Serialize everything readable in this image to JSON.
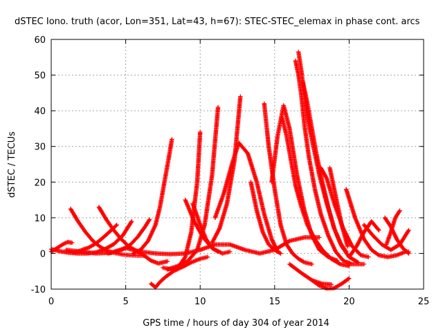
{
  "chart_data": {
    "type": "scatter",
    "title": "dSTEC Iono. truth (acor, Lon=351, Lat=43, h=67): STEC-STEC_elemax in phase cont. arcs",
    "xlabel": "GPS time / hours of day 304 of year 2014",
    "ylabel": "dSTEC  / TECUs",
    "xlim": [
      0,
      25
    ],
    "ylim": [
      -10,
      60
    ],
    "xticks": [
      0,
      5,
      10,
      15,
      20,
      25
    ],
    "yticks": [
      -10,
      0,
      10,
      20,
      30,
      40,
      50,
      60
    ],
    "grid": true,
    "legend": "none",
    "marker": "plus",
    "color": "#ff0000",
    "series": [
      {
        "x": [
          0.0,
          0.2,
          0.5,
          0.8,
          1.1,
          1.4
        ],
        "y": [
          0.5,
          1.0,
          1.8,
          2.6,
          3.2,
          3.0
        ]
      },
      {
        "x": [
          0.0,
          0.6,
          1.2,
          1.8,
          2.4,
          3.0,
          3.6,
          4.2,
          4.8,
          5.4
        ],
        "y": [
          1.2,
          0.6,
          0.2,
          0.0,
          0.0,
          0.3,
          1.2,
          2.6,
          5.0,
          9.0
        ]
      },
      {
        "x": [
          1.3,
          1.8,
          2.3,
          2.8,
          3.3,
          3.8,
          4.3,
          4.8,
          5.3,
          5.8,
          6.3
        ],
        "y": [
          12.5,
          9.0,
          6.0,
          3.5,
          1.8,
          0.7,
          0.1,
          -0.3,
          -0.5,
          -0.6,
          -0.6
        ]
      },
      {
        "x": [
          1.6,
          2.0,
          2.5,
          3.0,
          3.5,
          4.0,
          4.4
        ],
        "y": [
          0.3,
          0.9,
          1.6,
          2.8,
          4.5,
          6.4,
          8.0
        ]
      },
      {
        "x": [
          3.2,
          3.7,
          4.2,
          4.7,
          5.2,
          5.7,
          6.2,
          6.7,
          7.2,
          7.8
        ],
        "y": [
          13.0,
          9.5,
          6.5,
          4.0,
          2.0,
          0.8,
          -0.5,
          -2.0,
          -2.8,
          -2.2
        ]
      },
      {
        "x": [
          3.8,
          4.3,
          4.8,
          5.3,
          5.8,
          6.3,
          6.6
        ],
        "y": [
          0.0,
          0.4,
          1.2,
          2.4,
          4.6,
          7.5,
          9.5
        ]
      },
      {
        "x": [
          5.5,
          6.0,
          6.5,
          7.0,
          7.3,
          7.6,
          7.9,
          8.1
        ],
        "y": [
          0.0,
          1.0,
          3.5,
          8.0,
          13.0,
          20.0,
          27.0,
          32.0
        ]
      },
      {
        "x": [
          6.7,
          7.0,
          7.3,
          7.7,
          8.2,
          8.8,
          9.4,
          10.0,
          10.5
        ],
        "y": [
          -8.5,
          -9.5,
          -8.0,
          -6.5,
          -5.0,
          -3.8,
          -2.5,
          -1.5,
          -1.0
        ]
      },
      {
        "x": [
          7.5,
          8.0,
          8.5,
          9.0,
          9.4,
          9.8,
          10.0
        ],
        "y": [
          -4.0,
          -4.4,
          -4.0,
          -1.0,
          6.0,
          20.0,
          34.0
        ]
      },
      {
        "x": [
          7.8,
          8.5,
          9.2,
          9.8,
          10.3,
          10.8,
          11.2
        ],
        "y": [
          -4.5,
          -3.5,
          -2.0,
          1.0,
          8.0,
          22.0,
          41.0
        ]
      },
      {
        "x": [
          9.0,
          9.6,
          10.2,
          10.8,
          11.5,
          12.0
        ],
        "y": [
          15.0,
          9.0,
          4.5,
          1.5,
          0.0,
          0.5
        ]
      },
      {
        "x": [
          9.5,
          10.0,
          10.4,
          10.8,
          11.2
        ],
        "y": [
          14.0,
          8.0,
          4.0,
          1.5,
          0.5
        ]
      },
      {
        "x": [
          10.8,
          11.3,
          11.8,
          12.3,
          12.7
        ],
        "y": [
          3.0,
          7.0,
          14.0,
          26.0,
          44.0
        ]
      },
      {
        "x": [
          11.0,
          11.6,
          12.2,
          12.6,
          13.2,
          13.8,
          14.3,
          14.8,
          15.2
        ],
        "y": [
          10.0,
          17.0,
          26.0,
          31.0,
          28.0,
          20.0,
          11.0,
          4.0,
          0.5
        ]
      },
      {
        "x": [
          13.4,
          13.8,
          14.2,
          14.6,
          15.0,
          15.4
        ],
        "y": [
          20.0,
          12.0,
          6.0,
          2.5,
          1.0,
          0.0
        ]
      },
      {
        "x": [
          14.3,
          14.6,
          15.0,
          15.4,
          15.8,
          16.2,
          16.6,
          17.0,
          17.5
        ],
        "y": [
          42.0,
          30.0,
          18.0,
          8.0,
          2.5,
          0.0,
          -1.5,
          -2.5,
          -3.0
        ]
      },
      {
        "x": [
          14.8,
          15.2,
          15.6,
          16.0,
          16.5,
          17.0,
          17.5,
          18.0,
          18.6,
          19.2
        ],
        "y": [
          20.0,
          33.0,
          41.5,
          35.0,
          22.0,
          12.0,
          5.0,
          1.0,
          -1.0,
          -2.0
        ]
      },
      {
        "x": [
          15.5,
          15.8,
          16.1,
          16.4,
          16.8,
          17.2,
          17.7,
          18.2,
          18.8,
          19.4,
          20.0
        ],
        "y": [
          38.0,
          33.0,
          26.0,
          19.0,
          13.0,
          8.0,
          4.0,
          1.0,
          -1.5,
          -3.0,
          -3.5
        ]
      },
      {
        "x": [
          16.4,
          16.6,
          16.8,
          17.0,
          17.3,
          17.7,
          18.1,
          18.6,
          19.1,
          19.6,
          20.2,
          21.0
        ],
        "y": [
          54.0,
          50.0,
          44.0,
          36.0,
          27.0,
          18.0,
          11.0,
          5.0,
          0.5,
          -2.0,
          -3.0,
          -3.0
        ]
      },
      {
        "x": [
          16.6,
          16.8,
          17.0,
          17.2,
          17.6,
          18.0,
          18.5,
          19.0,
          19.5,
          20.0,
          20.6
        ],
        "y": [
          56.5,
          51.0,
          44.0,
          38.0,
          30.0,
          22.0,
          14.0,
          7.0,
          2.0,
          -1.0,
          -2.5
        ]
      },
      {
        "x": [
          16.9,
          17.2,
          17.5,
          17.8,
          18.2,
          18.6,
          19.0,
          19.4,
          19.8
        ],
        "y": [
          48.0,
          42.0,
          35.0,
          28.0,
          20.0,
          13.0,
          7.0,
          3.0,
          0.5
        ]
      },
      {
        "x": [
          18.1,
          18.5,
          19.0,
          19.6,
          20.2,
          20.8,
          21.3
        ],
        "y": [
          24.0,
          21.0,
          14.0,
          7.0,
          2.0,
          -0.5,
          -1.0
        ]
      },
      {
        "x": [
          18.7,
          19.1,
          19.5,
          19.9
        ],
        "y": [
          24.0,
          16.0,
          8.0,
          2.0
        ]
      },
      {
        "x": [
          19.8,
          20.4,
          21.0,
          21.5,
          22.0,
          22.6,
          23.2,
          23.8,
          24.0
        ],
        "y": [
          18.0,
          10.0,
          4.0,
          1.0,
          -0.5,
          -1.0,
          -0.5,
          0.5,
          0.5
        ]
      },
      {
        "x": [
          17.5,
          18.0,
          18.5,
          19.0,
          19.5,
          20.0
        ],
        "y": [
          -7.5,
          -9.0,
          -9.8,
          -9.7,
          -8.5,
          -7.0
        ]
      },
      {
        "x": [
          16.0,
          16.8,
          17.5,
          18.2,
          18.8
        ],
        "y": [
          -3.0,
          -5.5,
          -7.5,
          -8.5,
          -8.7
        ]
      },
      {
        "x": [
          20.0,
          20.5,
          21.0,
          21.5,
          22.0
        ],
        "y": [
          -1.0,
          2.0,
          6.0,
          9.0,
          6.5
        ]
      },
      {
        "x": [
          21.0,
          21.6,
          22.2,
          22.8,
          23.4,
          24.0
        ],
        "y": [
          8.0,
          5.0,
          2.5,
          1.0,
          2.5,
          6.5
        ]
      },
      {
        "x": [
          22.5,
          22.8,
          23.1,
          23.4
        ],
        "y": [
          2.5,
          6.0,
          10.0,
          12.0
        ]
      },
      {
        "x": [
          22.4,
          22.8,
          23.2,
          23.6,
          24.0
        ],
        "y": [
          10.0,
          7.5,
          4.0,
          1.5,
          0.0
        ]
      },
      {
        "x": [
          1.0,
          2.0,
          3.0,
          4.0,
          5.0,
          6.0,
          7.0,
          8.0,
          9.0,
          10.0,
          11.0,
          12.0,
          13.0,
          14.0,
          15.0,
          16.0,
          17.0,
          18.0
        ],
        "y": [
          1.0,
          0.5,
          0.0,
          0.2,
          1.5,
          0.5,
          0.0,
          -0.2,
          0.0,
          1.0,
          2.5,
          2.5,
          1.0,
          0.0,
          1.0,
          3.5,
          4.5,
          4.5
        ]
      }
    ]
  }
}
